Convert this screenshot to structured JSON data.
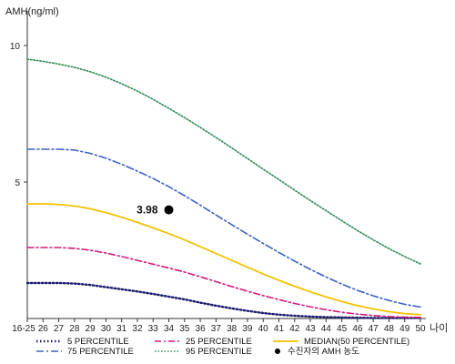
{
  "chart_data": {
    "type": "line",
    "ylabel": "AMH(ng/ml)",
    "xlabel": "나이",
    "ylim": [
      0,
      11
    ],
    "y_ticks": [
      5,
      10
    ],
    "categories": [
      "16-25",
      "26",
      "27",
      "28",
      "29",
      "30",
      "31",
      "32",
      "33",
      "34",
      "35",
      "36",
      "37",
      "38",
      "39",
      "40",
      "41",
      "42",
      "43",
      "44",
      "45",
      "46",
      "47",
      "48",
      "49",
      "50"
    ],
    "series": [
      {
        "name": "5 PERCENTILE",
        "color": "#1b1b6e",
        "dash": "1.5,2.5",
        "width": 2.4,
        "values": [
          1.3,
          1.3,
          1.3,
          1.28,
          1.23,
          1.15,
          1.07,
          0.99,
          0.9,
          0.8,
          0.7,
          0.58,
          0.47,
          0.37,
          0.28,
          0.2,
          0.14,
          0.1,
          0.07,
          0.05,
          0.04,
          0.03,
          0.02,
          0.02,
          0.02,
          0.02
        ]
      },
      {
        "name": "25 PERCENTILE",
        "color": "#d4187a",
        "dash": "7,3,2,3",
        "width": 1.6,
        "values": [
          2.6,
          2.6,
          2.6,
          2.57,
          2.5,
          2.4,
          2.27,
          2.13,
          1.99,
          1.85,
          1.7,
          1.53,
          1.35,
          1.17,
          1.0,
          0.84,
          0.69,
          0.55,
          0.43,
          0.32,
          0.23,
          0.16,
          0.11,
          0.07,
          0.05,
          0.04
        ]
      },
      {
        "name": "MEDIAN(50 PERCENTILE)",
        "color": "#f2c200",
        "dash": "",
        "width": 1.8,
        "values": [
          4.2,
          4.2,
          4.18,
          4.12,
          4.02,
          3.88,
          3.71,
          3.52,
          3.32,
          3.11,
          2.88,
          2.63,
          2.38,
          2.13,
          1.88,
          1.63,
          1.4,
          1.18,
          0.98,
          0.79,
          0.62,
          0.47,
          0.35,
          0.25,
          0.18,
          0.14
        ]
      },
      {
        "name": "75 PERCENTILE",
        "color": "#3a62c4",
        "dash": "8,3,2,3",
        "width": 1.6,
        "values": [
          6.2,
          6.2,
          6.2,
          6.17,
          6.05,
          5.87,
          5.65,
          5.4,
          5.13,
          4.83,
          4.5,
          4.15,
          3.79,
          3.44,
          3.09,
          2.75,
          2.42,
          2.1,
          1.8,
          1.52,
          1.26,
          1.03,
          0.83,
          0.66,
          0.52,
          0.42
        ]
      },
      {
        "name": "95 PERCENTILE",
        "color": "#2e8b57",
        "dash": "1.5,2",
        "width": 1.6,
        "values": [
          9.5,
          9.42,
          9.32,
          9.2,
          9.04,
          8.84,
          8.6,
          8.33,
          8.03,
          7.7,
          7.36,
          7.0,
          6.63,
          6.25,
          5.86,
          5.47,
          5.09,
          4.7,
          4.32,
          3.95,
          3.58,
          3.22,
          2.88,
          2.56,
          2.27,
          2.0
        ]
      }
    ],
    "marker": {
      "label": "수진자의 AMH 농도",
      "x": "34",
      "y": 3.98,
      "text": "3.98",
      "color": "#000000"
    },
    "legend": {
      "placement": "bottom",
      "rows": [
        [
          "5 PERCENTILE",
          "25 PERCENTILE",
          "MEDIAN(50 PERCENTILE)"
        ],
        [
          "75 PERCENTILE",
          "95 PERCENTILE",
          "수진자의 AMH 농도"
        ]
      ]
    },
    "grid": false
  }
}
